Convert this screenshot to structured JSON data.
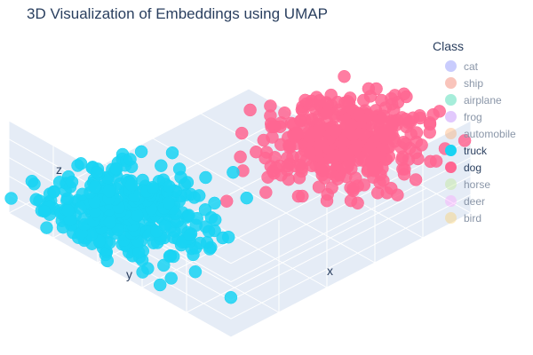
{
  "chart_data": {
    "type": "scatter",
    "title": "3D Visualization of Embeddings using UMAP",
    "xlabel": "x",
    "ylabel": "y",
    "zlabel": "z",
    "legend_title": "Class",
    "legend_position": "right",
    "series": [
      {
        "name": "cat",
        "color": "#636efa",
        "visible": false,
        "points": []
      },
      {
        "name": "ship",
        "color": "#ef553b",
        "visible": false,
        "points": []
      },
      {
        "name": "airplane",
        "color": "#00cc96",
        "visible": false,
        "points": []
      },
      {
        "name": "frog",
        "color": "#ab63fa",
        "visible": false,
        "points": []
      },
      {
        "name": "automobile",
        "color": "#ffa15a",
        "visible": false,
        "points": []
      },
      {
        "name": "truck",
        "color": "#19d3f3",
        "visible": true,
        "cluster": {
          "center": [
            -0.65,
            0.35,
            -0.6
          ],
          "spread": [
            0.25,
            0.28,
            0.14
          ],
          "count": 420
        }
      },
      {
        "name": "dog",
        "color": "#ff6692",
        "visible": true,
        "cluster": {
          "center": [
            0.45,
            -0.45,
            0.55
          ],
          "spread": [
            0.25,
            0.25,
            0.16
          ],
          "count": 420
        }
      },
      {
        "name": "horse",
        "color": "#b6e880",
        "visible": false,
        "points": []
      },
      {
        "name": "deer",
        "color": "#ff97ff",
        "visible": false,
        "points": []
      },
      {
        "name": "bird",
        "color": "#fecb52",
        "visible": false,
        "points": []
      }
    ],
    "grid": true,
    "background": "#e5ecf6"
  }
}
